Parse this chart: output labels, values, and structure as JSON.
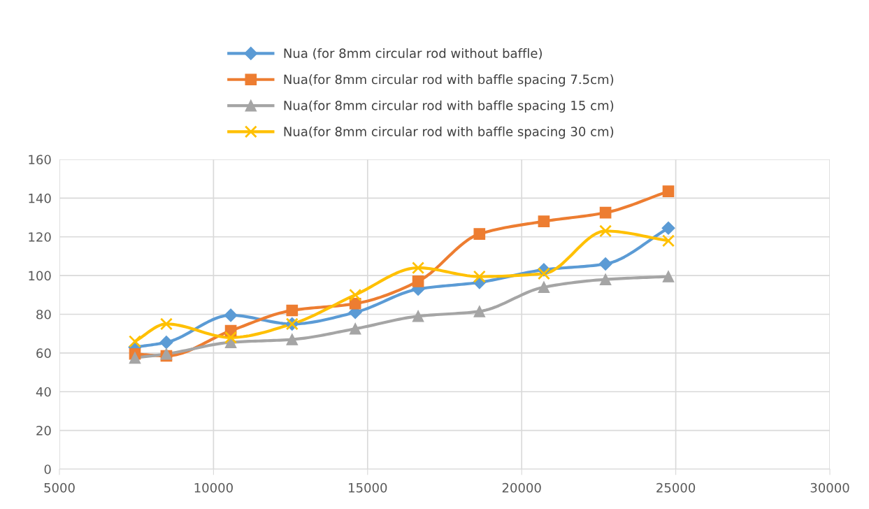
{
  "chart_data": {
    "type": "line",
    "x": [
      7450,
      8470,
      10560,
      12550,
      14600,
      16640,
      18630,
      20720,
      22720,
      24760
    ],
    "series": [
      {
        "name": "Nua (for 8mm circular rod without baffle)",
        "color": "#5b9bd5",
        "marker": "diamond",
        "values": [
          63,
          65.5,
          79.5,
          75,
          81,
          93,
          96.5,
          103,
          106,
          124.5
        ]
      },
      {
        "name": "Nua(for 8mm circular rod with baffle spacing 7.5cm)",
        "color": "#ed7d31",
        "marker": "square",
        "values": [
          59.5,
          58.5,
          71.5,
          82,
          85.5,
          97,
          121.5,
          128,
          132.5,
          143.5
        ]
      },
      {
        "name": "Nua(for 8mm circular rod with baffle spacing 15 cm)",
        "color": "#a5a5a5",
        "marker": "triangle",
        "values": [
          57.5,
          59.5,
          65.5,
          67,
          72.5,
          79,
          81.5,
          94,
          98,
          99.5
        ]
      },
      {
        "name": "Nua(for 8mm circular rod with baffle spacing 30 cm)",
        "color": "#ffc000",
        "marker": "cross",
        "values": [
          66,
          75,
          68,
          75,
          90,
          104,
          99.5,
          101,
          123,
          118
        ]
      }
    ],
    "xlim": [
      5000,
      30000
    ],
    "xticks": [
      5000,
      10000,
      15000,
      20000,
      25000,
      30000
    ],
    "ylim": [
      0,
      160
    ],
    "yticks": [
      0,
      20,
      40,
      60,
      80,
      100,
      120,
      140,
      160
    ],
    "grid": true,
    "legend": "top",
    "line_style": "solid"
  }
}
